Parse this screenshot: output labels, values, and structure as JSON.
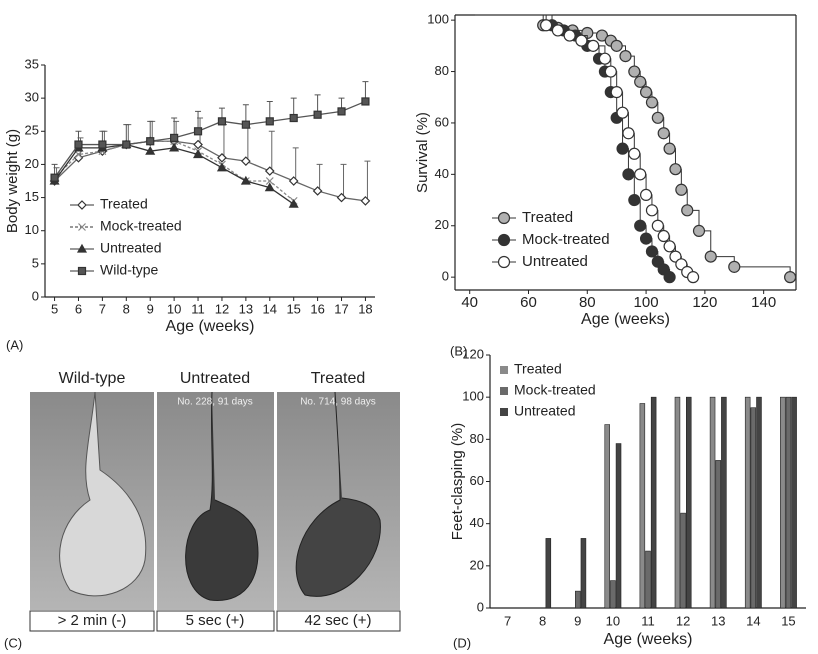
{
  "chart_data": [
    {
      "type": "line",
      "panel_label": "(A)",
      "x_label": "Age (weeks)",
      "y_label": "Body weight (g)",
      "x": [
        5,
        6,
        7,
        8,
        9,
        10,
        11,
        12,
        13,
        14,
        15,
        16,
        17,
        18
      ],
      "xlim": [
        4.6,
        18.4
      ],
      "xticks": [
        5,
        6,
        7,
        8,
        9,
        10,
        11,
        12,
        13,
        14,
        15,
        16,
        17,
        18
      ],
      "ylim": [
        0,
        35
      ],
      "yticks": [
        0,
        5,
        10,
        15,
        20,
        25,
        30,
        35
      ],
      "legend": "lower left",
      "series": [
        {
          "name": "Treated",
          "color": "#666666",
          "marker": "diamond",
          "values": [
            17.5,
            21,
            22,
            23,
            23.5,
            23.5,
            23,
            21,
            20.5,
            19,
            17.5,
            16,
            15,
            14.5
          ],
          "errors": [
            2,
            3,
            3,
            3,
            3,
            3,
            4,
            5,
            5,
            6,
            5,
            4,
            5,
            6
          ]
        },
        {
          "name": "Mock-treated",
          "color": "#888888",
          "marker": "cross",
          "values": [
            18,
            21.5,
            22,
            23,
            23.5,
            23.5,
            22,
            20,
            17.5,
            17.5,
            14.5,
            null,
            null,
            null
          ]
        },
        {
          "name": "Untreated",
          "color": "#333333",
          "marker": "triangle",
          "values": [
            17.5,
            22.5,
            22.5,
            23,
            22,
            22.5,
            21.5,
            19.5,
            17.5,
            16.5,
            14,
            null,
            null,
            null
          ]
        },
        {
          "name": "Wild-type",
          "color": "#555555",
          "marker": "square",
          "values": [
            18,
            23,
            23,
            23,
            23.5,
            24,
            25,
            26.5,
            26,
            26.5,
            27,
            27.5,
            28,
            29.5
          ],
          "errors": [
            2,
            2,
            2,
            3,
            3,
            3,
            3,
            2,
            3,
            3,
            3,
            3,
            2,
            3
          ]
        }
      ]
    },
    {
      "type": "step",
      "panel_label": "(B)",
      "x_label": "Age (weeks)",
      "y_label": "Survival (%)",
      "xlim": [
        35,
        151
      ],
      "xticks": [
        40,
        60,
        80,
        100,
        120,
        140
      ],
      "ylim": [
        -5,
        102
      ],
      "yticks": [
        0,
        20,
        40,
        60,
        80,
        100
      ],
      "legend": "lower left",
      "series": [
        {
          "name": "Treated",
          "color": "#b0b0b0",
          "x": [
            65,
            70,
            75,
            80,
            85,
            88,
            90,
            93,
            96,
            98,
            100,
            102,
            104,
            106,
            108,
            110,
            112,
            114,
            118,
            122,
            130,
            149
          ],
          "values": [
            98,
            97,
            96,
            95,
            94,
            92,
            90,
            86,
            80,
            76,
            72,
            68,
            62,
            56,
            50,
            42,
            34,
            26,
            18,
            8,
            4,
            0
          ]
        },
        {
          "name": "Mock-treated",
          "color": "#333333",
          "x": [
            68,
            72,
            76,
            80,
            84,
            86,
            88,
            90,
            92,
            94,
            96,
            98,
            100,
            102,
            104,
            106,
            108
          ],
          "values": [
            98,
            96,
            94,
            90,
            85,
            80,
            72,
            62,
            50,
            40,
            30,
            20,
            15,
            10,
            6,
            3,
            0
          ]
        },
        {
          "name": "Untreated",
          "color": "#ffffff",
          "x": [
            66,
            70,
            74,
            78,
            82,
            86,
            88,
            90,
            92,
            94,
            96,
            98,
            100,
            102,
            104,
            106,
            108,
            110,
            112,
            114,
            116
          ],
          "values": [
            98,
            96,
            94,
            92,
            90,
            85,
            80,
            72,
            64,
            56,
            48,
            40,
            32,
            26,
            20,
            16,
            12,
            8,
            5,
            2,
            0
          ]
        }
      ]
    },
    {
      "type": "bar",
      "panel_label": "(D)",
      "x_label": "Age (weeks)",
      "y_label": "Feet-clasping (%)",
      "categories": [
        "7",
        "8",
        "9",
        "10",
        "11",
        "12",
        "13",
        "14",
        "15"
      ],
      "ylim": [
        0,
        120
      ],
      "yticks": [
        0,
        20,
        40,
        60,
        80,
        100,
        120
      ],
      "legend": "upper left",
      "series": [
        {
          "name": "Treated",
          "color": "#8a8a8a",
          "values": [
            0,
            0,
            0,
            87,
            97,
            100,
            100,
            100,
            100
          ]
        },
        {
          "name": "Mock-treated",
          "color": "#6a6a6a",
          "values": [
            0,
            0,
            8,
            13,
            27,
            45,
            70,
            95,
            100
          ]
        },
        {
          "name": "Untreated",
          "color": "#444444",
          "values": [
            0,
            33,
            33,
            78,
            100,
            100,
            100,
            100,
            100
          ]
        }
      ]
    }
  ],
  "panel_c": {
    "panel_label": "(C)",
    "photos": [
      {
        "title": "Wild-type",
        "note": null,
        "caption": "> 2 min (-)"
      },
      {
        "title": "Untreated",
        "note": "No. 228, 91 days",
        "caption": "5 sec (+)"
      },
      {
        "title": "Treated",
        "note": "No. 714, 98 days",
        "caption": "42 sec (+)"
      }
    ]
  }
}
